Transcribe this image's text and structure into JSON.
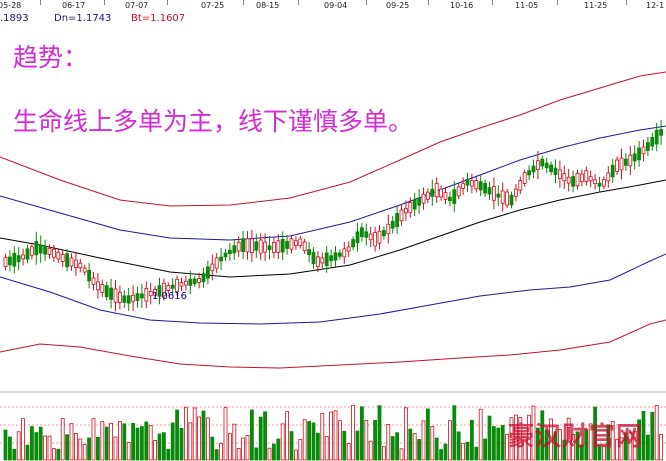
{
  "axis": {
    "dates": [
      "05-28",
      "06-17",
      "07-07",
      "07-25",
      "08-15",
      "09-04",
      "09-25",
      "10-16",
      "11-05",
      "11-25",
      "12-1"
    ]
  },
  "legend": {
    "up_value": ".1893",
    "dn_label": "Dn=1.1743",
    "bt_label": "Bt=1.1607",
    "colors": {
      "up": "#1a1a80",
      "dn": "#1a1a80",
      "bt": "#c8102e"
    }
  },
  "annotations": {
    "title": "趋势：",
    "body": "生命线上多单为主，线下谨慎多单。",
    "min_price": "1.0616",
    "watermark": "豪汉财官网"
  },
  "colors": {
    "bull": "#d0101e",
    "bear": "#0a8a0a",
    "outer_band": "#c8102e",
    "inner_band": "#1a1aa0",
    "mid_band": "#000000",
    "annotation": "#d42bd4"
  },
  "chart_data": {
    "type": "candlestick",
    "title": "",
    "x_dates": [
      "05-28",
      "06-17",
      "07-07",
      "07-25",
      "08-15",
      "09-04",
      "09-25",
      "10-16",
      "11-05",
      "11-25",
      "12-1"
    ],
    "bollinger": {
      "mid": 1.1743,
      "lower_label": "Dn=1.1743",
      "bottom_label": "Bt=1.1607"
    },
    "min_marked": 1.0616,
    "volume_panel": true,
    "grid": false
  }
}
